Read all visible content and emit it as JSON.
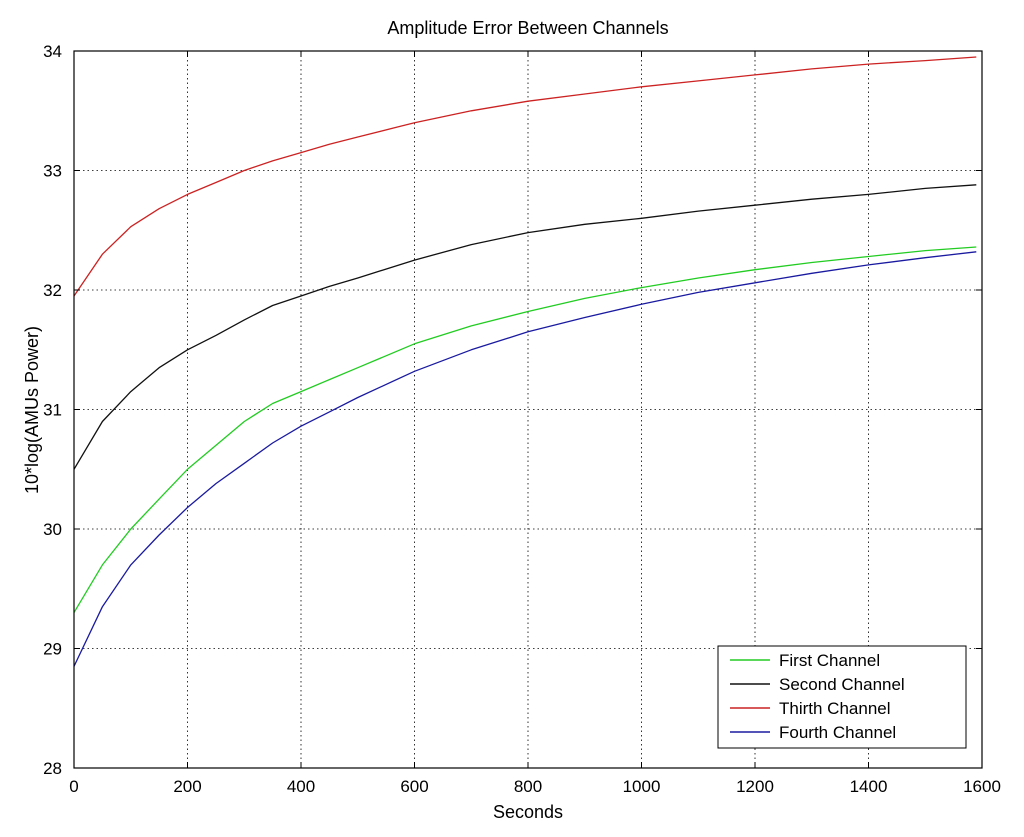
{
  "chart_data": {
    "type": "line",
    "title": "Amplitude Error Between Channels",
    "xlabel": "Seconds",
    "ylabel": "10*log(AMUs Power)",
    "xlim": [
      0,
      1600
    ],
    "ylim": [
      28,
      34
    ],
    "xticks": [
      0,
      200,
      400,
      600,
      800,
      1000,
      1200,
      1400,
      1600
    ],
    "yticks": [
      28,
      29,
      30,
      31,
      32,
      33,
      34
    ],
    "xtick_labels": [
      "0",
      "200",
      "400",
      "600",
      "800",
      "1000",
      "1200",
      "1400",
      "1600"
    ],
    "ytick_labels": [
      "28",
      "29",
      "30",
      "31",
      "32",
      "33",
      "34"
    ],
    "grid": true,
    "legend_position": "bottom-right",
    "series": [
      {
        "name": "First Channel",
        "color": "#22cc22",
        "x": [
          0,
          50,
          100,
          150,
          200,
          250,
          300,
          350,
          400,
          450,
          500,
          600,
          700,
          800,
          900,
          1000,
          1100,
          1200,
          1300,
          1400,
          1500,
          1590
        ],
        "y": [
          29.3,
          29.7,
          30.0,
          30.25,
          30.5,
          30.7,
          30.9,
          31.05,
          31.15,
          31.25,
          31.35,
          31.55,
          31.7,
          31.82,
          31.93,
          32.02,
          32.1,
          32.17,
          32.23,
          32.28,
          32.33,
          32.36
        ]
      },
      {
        "name": "Second Channel",
        "color": "#111111",
        "x": [
          0,
          50,
          100,
          150,
          200,
          250,
          300,
          350,
          400,
          450,
          500,
          600,
          700,
          800,
          900,
          1000,
          1100,
          1200,
          1300,
          1400,
          1500,
          1590
        ],
        "y": [
          30.5,
          30.9,
          31.15,
          31.35,
          31.5,
          31.62,
          31.75,
          31.87,
          31.95,
          32.03,
          32.1,
          32.25,
          32.38,
          32.48,
          32.55,
          32.6,
          32.66,
          32.71,
          32.76,
          32.8,
          32.85,
          32.88
        ]
      },
      {
        "name": "Thirth Channel",
        "color": "#cc2222",
        "x": [
          0,
          50,
          100,
          150,
          200,
          250,
          300,
          350,
          400,
          450,
          500,
          600,
          700,
          800,
          900,
          1000,
          1100,
          1200,
          1300,
          1400,
          1500,
          1590
        ],
        "y": [
          31.95,
          32.3,
          32.53,
          32.68,
          32.8,
          32.9,
          33.0,
          33.08,
          33.15,
          33.22,
          33.28,
          33.4,
          33.5,
          33.58,
          33.64,
          33.7,
          33.75,
          33.8,
          33.85,
          33.89,
          33.92,
          33.95
        ]
      },
      {
        "name": "Fourth Channel",
        "color": "#1a1aa0",
        "x": [
          0,
          50,
          100,
          150,
          200,
          250,
          300,
          350,
          400,
          450,
          500,
          600,
          700,
          800,
          900,
          1000,
          1100,
          1200,
          1300,
          1400,
          1500,
          1590
        ],
        "y": [
          28.85,
          29.35,
          29.7,
          29.95,
          30.18,
          30.38,
          30.55,
          30.72,
          30.86,
          30.98,
          31.1,
          31.32,
          31.5,
          31.65,
          31.77,
          31.88,
          31.98,
          32.06,
          32.14,
          32.21,
          32.27,
          32.32
        ]
      }
    ]
  }
}
